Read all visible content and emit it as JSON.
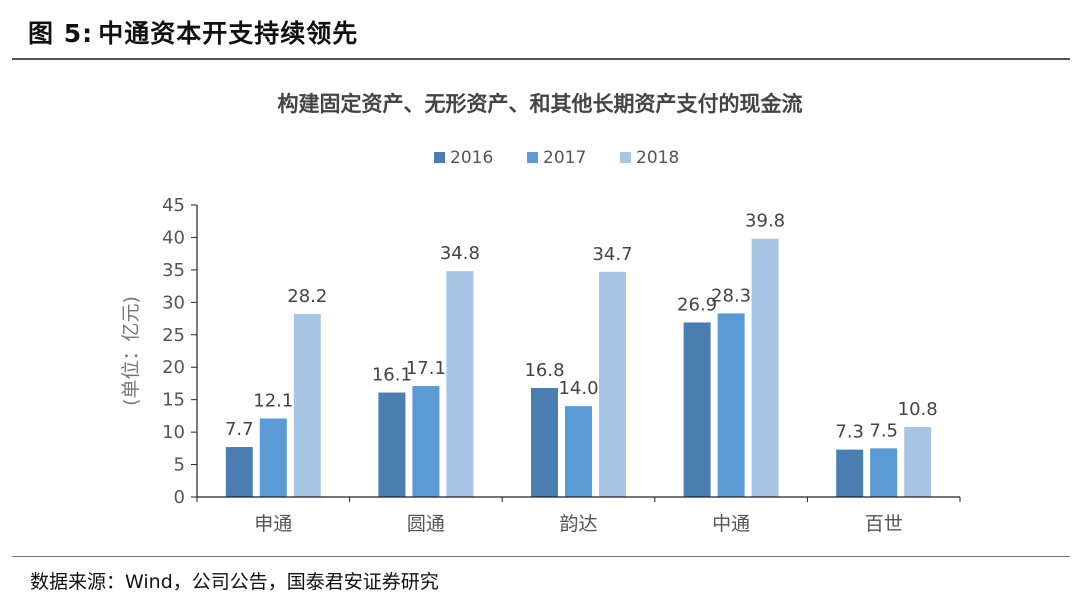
{
  "figure": {
    "label": "图 5:",
    "title": "中通资本开支持续领先"
  },
  "source": "数据来源：Wind，公司公告，国泰君安证券研究",
  "colors": {
    "series_2016": "#4a7eb0",
    "series_2017": "#5b9bd5",
    "series_2018": "#a9c5e6",
    "axis": "#222222",
    "text": "#555555"
  },
  "chart_data": {
    "type": "bar",
    "title": "构建固定资产、无形资产、和其他长期资产支付的现金流",
    "ylabel": "(单位：亿元)",
    "xlabel": "",
    "categories": [
      "申通",
      "圆通",
      "韵达",
      "中通",
      "百世"
    ],
    "series": [
      {
        "name": "2016",
        "values": [
          7.7,
          16.1,
          16.8,
          26.9,
          7.3
        ]
      },
      {
        "name": "2017",
        "values": [
          12.1,
          17.1,
          14.0,
          28.3,
          7.5
        ]
      },
      {
        "name": "2018",
        "values": [
          28.2,
          34.8,
          34.7,
          39.8,
          10.8
        ]
      }
    ],
    "data_labels": [
      [
        "7.7",
        "16.1",
        "16.8",
        "26.9",
        "7.3"
      ],
      [
        "12.1",
        "17.1",
        "14.0",
        "28.3",
        "7.5"
      ],
      [
        "28.2",
        "34.8",
        "34.7",
        "39.8",
        "10.8"
      ]
    ],
    "ylim": [
      0,
      45
    ],
    "yticks": [
      0,
      5,
      10,
      15,
      20,
      25,
      30,
      35,
      40,
      45
    ],
    "grid": false,
    "legend": "top-center"
  }
}
